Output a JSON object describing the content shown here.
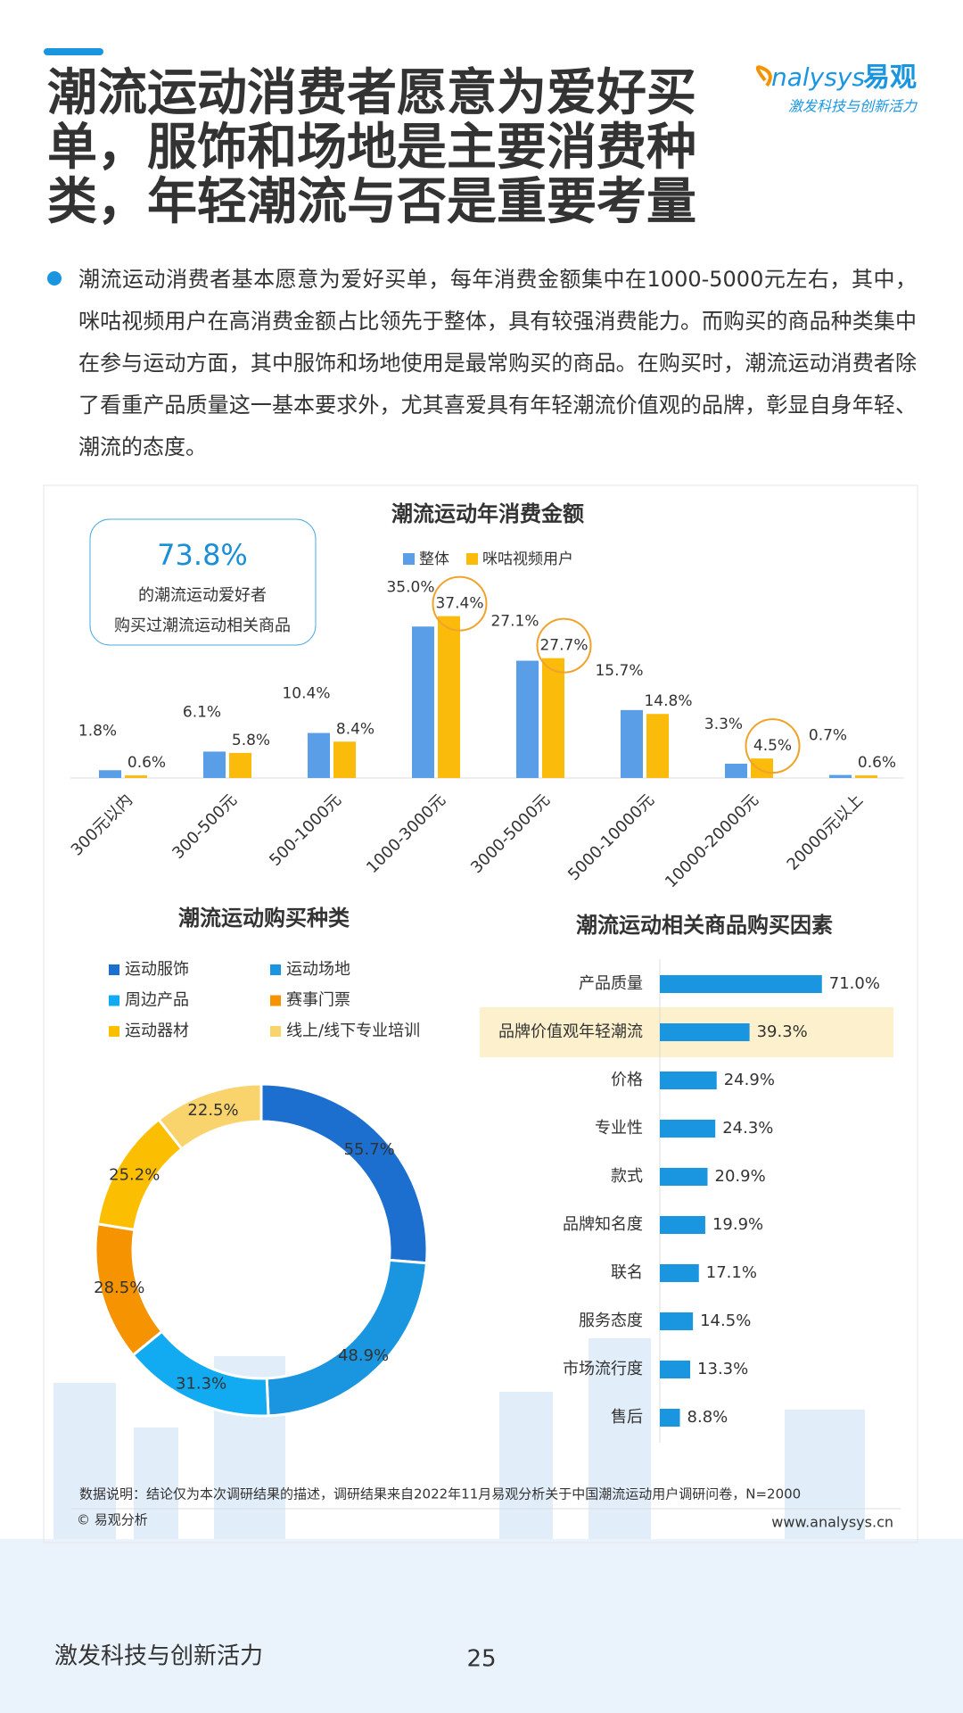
{
  "header": {
    "title_lines": [
      "潮流运动消费者愿意为爱好买",
      "单，服饰和场地是主要消费种",
      "类，年轻潮流与否是重要考量"
    ],
    "logo_name": "nalysys",
    "logo_cn": "易观",
    "logo_slogan": "激发科技与创新活力"
  },
  "summary": "潮流运动消费者基本愿意为爱好买单，每年消费金额集中在1000-5000元左右，其中，咪咕视频用户在高消费金额占比领先于整体，具有较强消费能力。而购买的商品种类集中在参与运动方面，其中服饰和场地使用是最常购买的商品。在购买时，潮流运动消费者除了看重产品质量这一基本要求外，尤其喜爱具有年轻潮流价值观的品牌，彰显自身年轻、潮流的态度。",
  "callout": {
    "value": "73.8%",
    "lines": [
      "的潮流运动爱好者",
      "购买过潮流运动相关商品"
    ]
  },
  "chart_data": [
    {
      "type": "bar",
      "title": "潮流运动年消费金额",
      "categories": [
        "300元以内",
        "300-500元",
        "500-1000元",
        "1000-3000元",
        "3000-5000元",
        "5000-10000元",
        "10000-20000元",
        "20000元以上"
      ],
      "series": [
        {
          "name": "整体",
          "color": "#5b9ee8",
          "values": [
            1.8,
            6.1,
            10.4,
            35.0,
            27.1,
            15.7,
            3.3,
            0.7
          ],
          "value_labels": [
            "1.8%",
            "6.1%",
            "10.4%",
            "35.0%",
            "27.1%",
            "15.7%",
            "3.3%",
            "0.7%"
          ]
        },
        {
          "name": "咪咕视频用户",
          "color": "#fbbb0b",
          "values": [
            0.6,
            5.8,
            8.4,
            37.4,
            27.7,
            14.8,
            4.5,
            0.6
          ],
          "value_labels": [
            "0.6%",
            "5.8%",
            "8.4%",
            "37.4%",
            "27.7%",
            "14.8%",
            "4.5%",
            "0.6%"
          ]
        }
      ]
    },
    {
      "type": "donut",
      "title": "潮流运动购买种类",
      "categories": [
        "运动服饰",
        "运动场地",
        "周边产品",
        "赛事门票",
        "运动器材",
        "线上/线下专业培训"
      ],
      "colors": [
        "#1c6fce",
        "#1a96e0",
        "#12aaf0",
        "#f59300",
        "#fbbe00",
        "#f9d36b"
      ],
      "values": [
        55.7,
        48.9,
        31.3,
        28.5,
        25.2,
        22.5
      ],
      "value_labels": [
        "55.7%",
        "48.9%",
        "31.3%",
        "28.5%",
        "25.2%",
        "22.5%"
      ]
    },
    {
      "type": "hbar",
      "title": "潮流运动相关商品购买因素",
      "color": "#1a96e0",
      "highlight": 1,
      "categories": [
        "产品质量",
        "品牌价值观年轻潮流",
        "价格",
        "专业性",
        "款式",
        "品牌知名度",
        "联名",
        "服务态度",
        "市场流行度",
        "售后"
      ],
      "values": [
        71.0,
        39.3,
        24.9,
        24.3,
        20.9,
        19.9,
        17.1,
        14.5,
        13.3,
        8.8
      ],
      "value_labels": [
        "71.0%",
        "39.3%",
        "24.9%",
        "24.3%",
        "20.9%",
        "19.9%",
        "17.1%",
        "14.5%",
        "13.3%",
        "8.8%"
      ]
    }
  ],
  "footer": {
    "note": "数据说明：结论仅为本次调研结果的描述，调研结果来自2022年11月易观分析关于中国潮流运动用户调研问卷，N=2000",
    "source": "© 易观分析",
    "url": "www.analysys.cn",
    "slogan": "激发科技与创新活力",
    "page": "25"
  }
}
